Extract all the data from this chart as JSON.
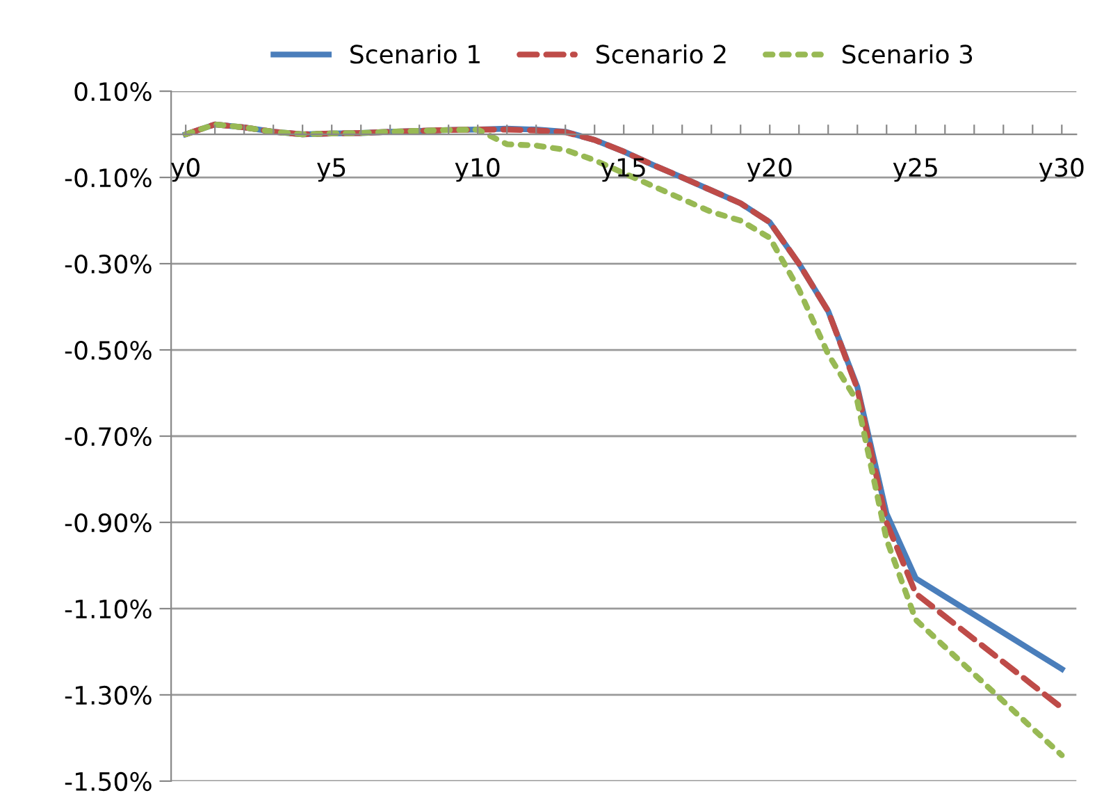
{
  "chart_data": {
    "type": "line",
    "categories": [
      "y0",
      null,
      null,
      null,
      null,
      "y5",
      null,
      null,
      null,
      null,
      "y10",
      null,
      null,
      null,
      null,
      "y15",
      null,
      null,
      null,
      null,
      "y20",
      null,
      null,
      null,
      null,
      "y25",
      null,
      null,
      null,
      null,
      "y30"
    ],
    "series": [
      {
        "name": "Scenario 1",
        "color": "#4a7ebb",
        "line_style": "solid",
        "values": [
          0.0,
          0.023,
          0.016,
          0.006,
          0.0,
          0.002,
          0.003,
          0.006,
          0.008,
          0.01,
          0.011,
          0.013,
          0.011,
          0.006,
          -0.013,
          -0.04,
          -0.071,
          -0.1,
          -0.13,
          -0.16,
          -0.204,
          -0.3,
          -0.41,
          -0.586,
          -0.88,
          -1.03,
          -1.072,
          -1.114,
          -1.156,
          -1.198,
          -1.24
        ]
      },
      {
        "name": "Scenario 2",
        "color": "#be4b48",
        "line_style": "dashed",
        "values": [
          0.0,
          0.023,
          0.016,
          0.006,
          0.0,
          0.002,
          0.003,
          0.006,
          0.008,
          0.01,
          0.011,
          0.011,
          0.009,
          0.005,
          -0.013,
          -0.04,
          -0.071,
          -0.1,
          -0.13,
          -0.16,
          -0.204,
          -0.3,
          -0.41,
          -0.59,
          -0.9,
          -1.065,
          -1.118,
          -1.171,
          -1.224,
          -1.277,
          -1.33
        ]
      },
      {
        "name": "Scenario 3",
        "color": "#98b954",
        "line_style": "dotted",
        "values": [
          0.0,
          0.023,
          0.016,
          0.006,
          0.0,
          0.002,
          0.003,
          0.006,
          0.008,
          0.01,
          0.011,
          -0.023,
          -0.026,
          -0.036,
          -0.06,
          -0.09,
          -0.12,
          -0.15,
          -0.18,
          -0.2,
          -0.24,
          -0.36,
          -0.51,
          -0.62,
          -0.94,
          -1.126,
          -1.189,
          -1.252,
          -1.315,
          -1.378,
          -1.44
        ]
      }
    ],
    "ylim": [
      -1.5,
      0.1
    ],
    "yticks": [
      {
        "value": 0.1,
        "label": "0.10%"
      },
      {
        "value": -0.1,
        "label": "-0.10%"
      },
      {
        "value": -0.3,
        "label": "-0.30%"
      },
      {
        "value": -0.5,
        "label": "-0.50%"
      },
      {
        "value": -0.7,
        "label": "-0.70%"
      },
      {
        "value": -0.9,
        "label": "-0.90%"
      },
      {
        "value": -1.1,
        "label": "-1.10%"
      },
      {
        "value": -1.3,
        "label": "-1.30%"
      },
      {
        "value": -1.5,
        "label": "-1.50%"
      }
    ],
    "grid": "y",
    "legend": "top",
    "marker": "none"
  }
}
